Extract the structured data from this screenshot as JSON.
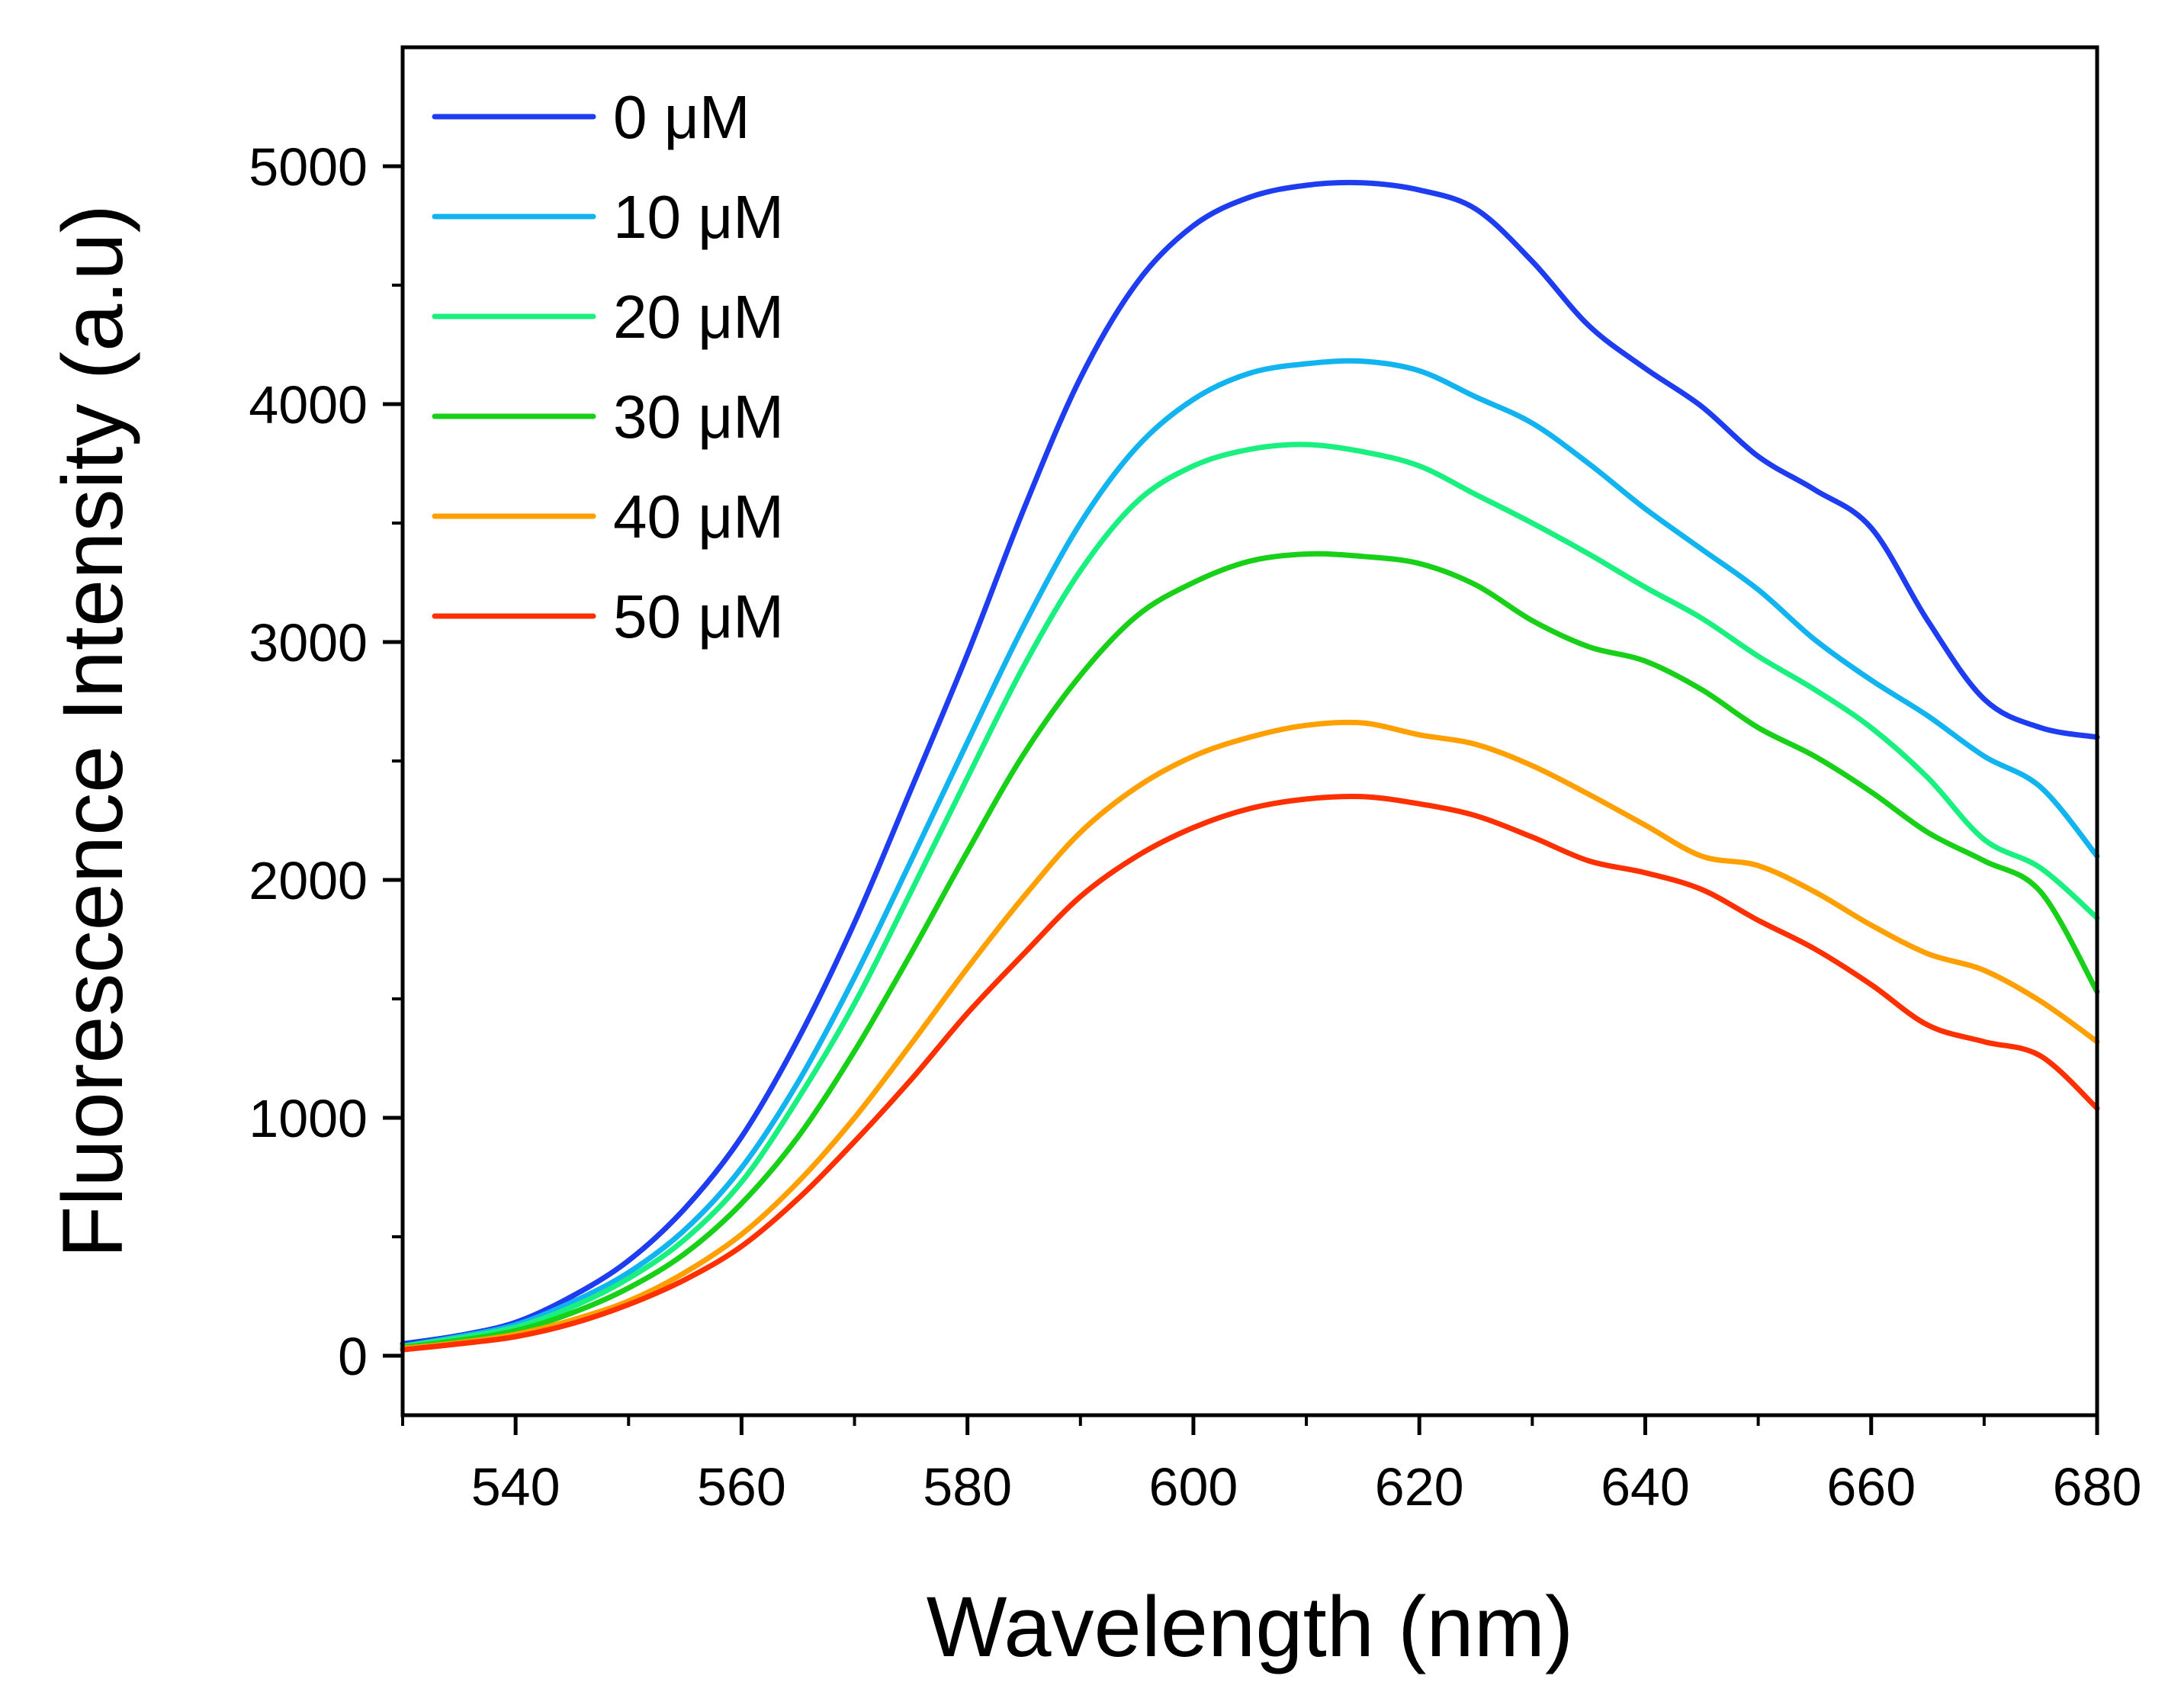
{
  "chart_data": {
    "type": "line",
    "title": "",
    "xlabel": "Wavelength (nm)",
    "ylabel": "Fluorescence Intensity (a.u)",
    "xlim": [
      530,
      680
    ],
    "ylim": [
      -250,
      5500
    ],
    "xticks": [
      540,
      560,
      580,
      600,
      620,
      640,
      660,
      680
    ],
    "yticks": [
      0,
      1000,
      2000,
      3000,
      4000,
      5000
    ],
    "grid": false,
    "legend_position": "top-left",
    "x": [
      530,
      535,
      540,
      545,
      550,
      555,
      560,
      565,
      570,
      575,
      580,
      585,
      590,
      595,
      600,
      605,
      610,
      615,
      620,
      625,
      630,
      635,
      640,
      645,
      650,
      655,
      660,
      665,
      670,
      675,
      680
    ],
    "series": [
      {
        "name": "0 μM",
        "color": "#1e3cf0",
        "values": [
          50,
          85,
          140,
          250,
          400,
          620,
          920,
          1330,
          1820,
          2380,
          2950,
          3560,
          4110,
          4510,
          4750,
          4870,
          4920,
          4930,
          4900,
          4820,
          4600,
          4330,
          4150,
          3990,
          3780,
          3640,
          3480,
          3090,
          2760,
          2640,
          2600
        ]
      },
      {
        "name": "10 μM",
        "color": "#12b4f0",
        "values": [
          40,
          80,
          130,
          225,
          350,
          530,
          790,
          1150,
          1590,
          2080,
          2580,
          3070,
          3500,
          3820,
          4020,
          4130,
          4170,
          4180,
          4140,
          4030,
          3920,
          3750,
          3560,
          3390,
          3220,
          3010,
          2840,
          2690,
          2520,
          2390,
          2100
        ]
      },
      {
        "name": "20 μM",
        "color": "#19f080",
        "values": [
          40,
          75,
          120,
          205,
          325,
          490,
          730,
          1080,
          1480,
          1950,
          2430,
          2900,
          3300,
          3590,
          3740,
          3810,
          3830,
          3800,
          3740,
          3620,
          3500,
          3370,
          3230,
          3100,
          2940,
          2800,
          2640,
          2430,
          2170,
          2050,
          1840
        ]
      },
      {
        "name": "30 μM",
        "color": "#18d018",
        "values": [
          35,
          65,
          105,
          180,
          285,
          430,
          640,
          920,
          1280,
          1690,
          2120,
          2530,
          2860,
          3110,
          3250,
          3340,
          3370,
          3360,
          3330,
          3240,
          3090,
          2980,
          2920,
          2800,
          2640,
          2520,
          2370,
          2200,
          2080,
          1950,
          1530
        ]
      },
      {
        "name": "40 μM",
        "color": "#ffa000",
        "values": [
          30,
          55,
          90,
          150,
          230,
          350,
          510,
          730,
          1000,
          1310,
          1630,
          1930,
          2200,
          2390,
          2520,
          2600,
          2650,
          2660,
          2610,
          2570,
          2480,
          2360,
          2230,
          2100,
          2060,
          1950,
          1810,
          1690,
          1620,
          1490,
          1320
        ]
      },
      {
        "name": "50 μM",
        "color": "#ff3000",
        "values": [
          25,
          50,
          80,
          135,
          215,
          320,
          460,
          660,
          900,
          1160,
          1440,
          1690,
          1930,
          2100,
          2220,
          2300,
          2340,
          2350,
          2320,
          2270,
          2180,
          2080,
          2030,
          1960,
          1830,
          1710,
          1560,
          1390,
          1320,
          1260,
          1040
        ]
      }
    ]
  }
}
